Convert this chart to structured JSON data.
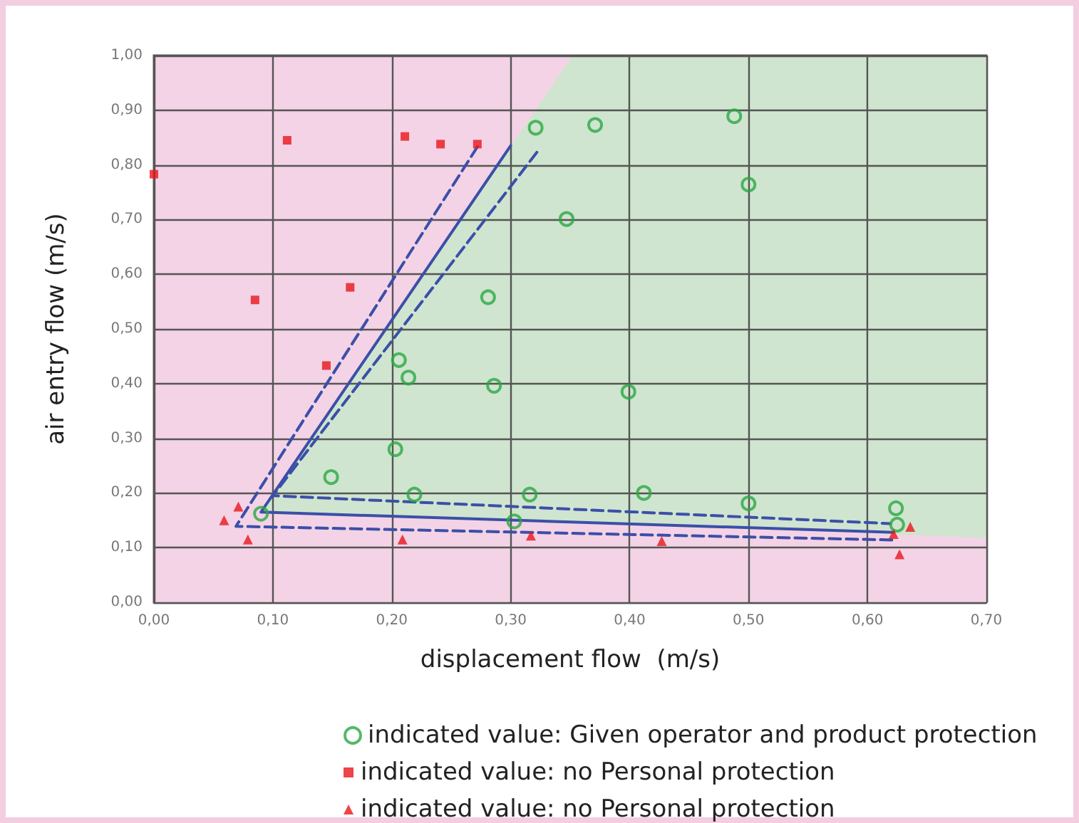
{
  "chart_data": {
    "type": "scatter",
    "xlabel": "displacement flow  (m/s)",
    "ylabel": "air entry flow (m/s)",
    "xlim": [
      0,
      0.7
    ],
    "ylim": [
      0,
      1
    ],
    "xticks": [
      {
        "value": 0,
        "label": "0,00"
      },
      {
        "value": 0.1,
        "label": "0,10"
      },
      {
        "value": 0.2,
        "label": "0,20"
      },
      {
        "value": 0.3,
        "label": "0,30"
      },
      {
        "value": 0.4,
        "label": "0,40"
      },
      {
        "value": 0.5,
        "label": "0,50"
      },
      {
        "value": 0.6,
        "label": "0,60"
      },
      {
        "value": 0.7,
        "label": "0,70"
      }
    ],
    "yticks": [
      {
        "value": 0,
        "label": "0,00"
      },
      {
        "value": 0.1,
        "label": "0,10"
      },
      {
        "value": 0.2,
        "label": "0,20"
      },
      {
        "value": 0.3,
        "label": "0,30"
      },
      {
        "value": 0.4,
        "label": "0,40"
      },
      {
        "value": 0.5,
        "label": "0,50"
      },
      {
        "value": 0.6,
        "label": "0,60"
      },
      {
        "value": 0.7,
        "label": "0,70"
      },
      {
        "value": 0.8,
        "label": "0,80"
      },
      {
        "value": 0.9,
        "label": "0,90"
      },
      {
        "value": 1,
        "label": "1,00"
      }
    ],
    "grid": true,
    "legend": "bottom",
    "series": [
      {
        "name": "indicated value: Given operator and product protection",
        "color": "#2aa844",
        "marker": "circle",
        "x": [
          0.321,
          0.347,
          0.281,
          0.206,
          0.214,
          0.286,
          0.203,
          0.149,
          0.219,
          0.316,
          0.303,
          0.09,
          0.371,
          0.488,
          0.5,
          0.399,
          0.412,
          0.5,
          0.624,
          0.625
        ],
        "values": [
          0.868,
          0.701,
          0.558,
          0.443,
          0.411,
          0.396,
          0.28,
          0.229,
          0.197,
          0.197,
          0.148,
          0.162,
          0.873,
          0.889,
          0.764,
          0.385,
          0.2,
          0.181,
          0.172,
          0.142
        ]
      },
      {
        "name": "indicated value: no Personal protection",
        "color": "#e8161b",
        "marker": "square",
        "x": [
          0.0,
          0.112,
          0.211,
          0.241,
          0.272,
          0.085,
          0.165,
          0.145
        ],
        "values": [
          0.783,
          0.845,
          0.852,
          0.838,
          0.838,
          0.553,
          0.576,
          0.433
        ]
      },
      {
        "name": "indicated value: no Personal protection",
        "color": "#e8161b",
        "marker": "triangle",
        "x": [
          0.059,
          0.071,
          0.079,
          0.209,
          0.317,
          0.427,
          0.622,
          0.636,
          0.627
        ],
        "values": [
          0.15,
          0.175,
          0.115,
          0.115,
          0.122,
          0.112,
          0.125,
          0.138,
          0.088
        ]
      },
      {
        "type": "area",
        "color": "#f4d3e6",
        "x": [
          0.0,
          0.352
        ],
        "values": [
          1,
          1
        ]
      },
      {
        "type": "area",
        "color": "#cfe5cf",
        "x": [
          0.09,
          0.352,
          0.7
        ],
        "values": [
          0.165,
          1,
          1
        ]
      },
      {
        "type": "area",
        "color": "#f4d3e6",
        "x": [
          0.09,
          0.352,
          0.7
        ],
        "values": [
          0.165,
          0.148,
          0.118
        ]
      },
      {
        "type": "line",
        "color": "#3b4fa8",
        "marker": "none",
        "line_style": "solid",
        "x": [
          0.3,
          0.09,
          0.622
        ],
        "values": [
          0.835,
          0.165,
          0.128
        ]
      },
      {
        "type": "line",
        "color": "#3b4fa8",
        "marker": "none",
        "line_style": "dashed",
        "x": [
          0.272,
          0.069,
          0.621
        ],
        "values": [
          0.833,
          0.139,
          0.114
        ]
      },
      {
        "type": "line",
        "color": "#3b4fa8",
        "marker": "none",
        "line_style": "dashed",
        "x": [
          0.322,
          0.1,
          0.619
        ],
        "values": [
          0.823,
          0.195,
          0.144
        ]
      }
    ]
  }
}
